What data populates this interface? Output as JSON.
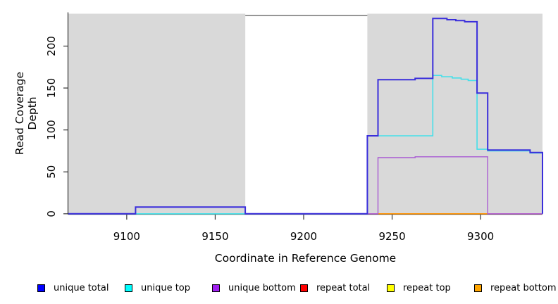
{
  "chart_data": {
    "type": "line",
    "subtype": "step-coverage",
    "title": "",
    "xlabel": "Coordinate in Reference Genome",
    "ylabel": "Read Coverage Depth",
    "xlim": [
      9067,
      9335
    ],
    "ylim": [
      0,
      241
    ],
    "x_ticks": [
      9100,
      9150,
      9200,
      9250,
      9300
    ],
    "y_ticks": [
      0,
      50,
      100,
      150,
      200
    ],
    "grid": false,
    "legend_position": "bottom",
    "colors": {
      "plot_background": "#ffffff",
      "shaded_region": "#d9d9d9",
      "band_border": "#969696",
      "axis": "#333333",
      "tick_text": "#000000"
    },
    "shaded_regions": [
      {
        "x0": 9067,
        "x1": 9167
      },
      {
        "x0": 9236,
        "x1": 9335
      }
    ],
    "white_band": {
      "x0": 9167,
      "x1": 9236,
      "top_value": 236.5
    },
    "series": [
      {
        "name": "repeat top",
        "color": "#f0e800",
        "width": 1.3,
        "points": [
          [
            9067,
            0
          ],
          [
            9335,
            0
          ]
        ]
      },
      {
        "name": "repeat bottom",
        "color": "#ff9100",
        "width": 1.3,
        "points": [
          [
            9067,
            0
          ],
          [
            9335,
            0
          ]
        ]
      },
      {
        "name": "repeat total",
        "color": "#e03030",
        "width": 1.3,
        "points": [
          [
            9067,
            0
          ],
          [
            9335,
            0
          ]
        ]
      }
    ],
    "baseline_overlays": [
      {
        "x0": 9105,
        "x1": 9167,
        "color": "#8fd690"
      },
      {
        "x0": 9236,
        "x1": 9242,
        "color": "#ee72ac"
      },
      {
        "x0": 9242,
        "x1": 9304,
        "color": "#ff9100"
      },
      {
        "x0": 9304,
        "x1": 9335,
        "color": "#ee6e9c"
      }
    ],
    "series_top": [
      {
        "name": "unique bottom",
        "color": "#a95bd3",
        "width": 1.4,
        "points": [
          [
            9067,
            0
          ],
          [
            9242,
            0
          ],
          [
            9242,
            67
          ],
          [
            9263,
            67
          ],
          [
            9263,
            68
          ],
          [
            9304,
            68
          ],
          [
            9304,
            0
          ],
          [
            9335,
            0
          ]
        ]
      },
      {
        "name": "unique top",
        "color": "#45dfe9",
        "width": 1.6,
        "points": [
          [
            9067,
            0
          ],
          [
            9236,
            0
          ],
          [
            9236,
            93
          ],
          [
            9273,
            93
          ],
          [
            9273,
            165
          ],
          [
            9278,
            165
          ],
          [
            9278,
            163.5
          ],
          [
            9284,
            163.5
          ],
          [
            9284,
            162
          ],
          [
            9289,
            162
          ],
          [
            9289,
            160.5
          ],
          [
            9293,
            160.5
          ],
          [
            9293,
            159
          ],
          [
            9298,
            159
          ],
          [
            9298,
            77
          ],
          [
            9304,
            77
          ],
          [
            9304,
            75
          ],
          [
            9328,
            75
          ],
          [
            9328,
            72.5
          ],
          [
            9335,
            72.5
          ],
          [
            9335,
            0
          ]
        ]
      },
      {
        "name": "unique total",
        "color": "#3a2edb",
        "width": 2,
        "points": [
          [
            9067,
            0
          ],
          [
            9105,
            0
          ],
          [
            9105,
            8
          ],
          [
            9167,
            8
          ],
          [
            9167,
            0
          ],
          [
            9236,
            0
          ],
          [
            9236,
            93
          ],
          [
            9242,
            93
          ],
          [
            9242,
            160
          ],
          [
            9263,
            160
          ],
          [
            9263,
            161.5
          ],
          [
            9273,
            161.5
          ],
          [
            9273,
            233
          ],
          [
            9281,
            233
          ],
          [
            9281,
            231.5
          ],
          [
            9286,
            231.5
          ],
          [
            9286,
            230.5
          ],
          [
            9291,
            230.5
          ],
          [
            9291,
            229
          ],
          [
            9298,
            229
          ],
          [
            9298,
            144
          ],
          [
            9304,
            144
          ],
          [
            9304,
            76
          ],
          [
            9328,
            76
          ],
          [
            9328,
            73
          ],
          [
            9335,
            73
          ],
          [
            9335,
            0
          ]
        ]
      }
    ]
  },
  "legend": {
    "items": [
      {
        "label": "unique total",
        "color": "#0000ff"
      },
      {
        "label": "unique top",
        "color": "#00ffff"
      },
      {
        "label": "unique bottom",
        "color": "#a020f0"
      },
      {
        "label": "repeat total",
        "color": "#ff0000"
      },
      {
        "label": "repeat top",
        "color": "#ffff00"
      },
      {
        "label": "repeat bottom",
        "color": "#ffa500"
      }
    ]
  }
}
